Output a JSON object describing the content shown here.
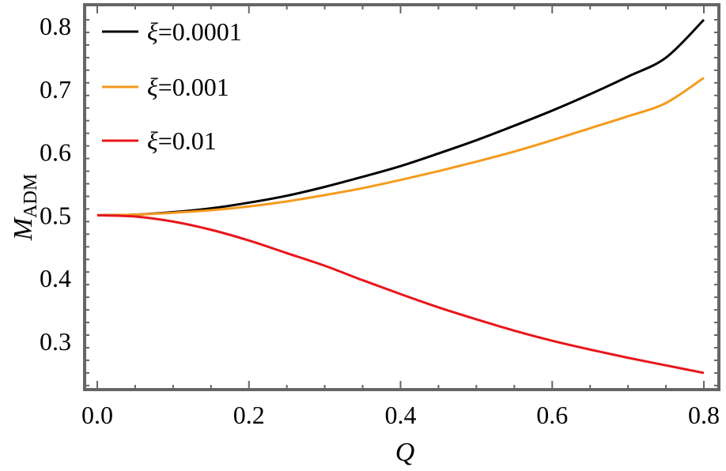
{
  "chart_data": {
    "type": "line",
    "xlabel": "Q",
    "ylabel_main": "M",
    "ylabel_sub": "ADM",
    "xlim": [
      0.0,
      0.8
    ],
    "ylim": [
      0.225,
      0.825
    ],
    "xticks": [
      0.0,
      0.2,
      0.4,
      0.6,
      0.8
    ],
    "xtick_labels": [
      "0.0",
      "0.2",
      "0.4",
      "0.6",
      "0.8"
    ],
    "yticks": [
      0.3,
      0.4,
      0.5,
      0.6,
      0.7,
      0.8
    ],
    "ytick_labels": [
      "0.3",
      "0.4",
      "0.5",
      "0.6",
      "0.7",
      "0.8"
    ],
    "legend_position": "top-left",
    "grid": false,
    "x": [
      0.0,
      0.05,
      0.1,
      0.15,
      0.2,
      0.25,
      0.3,
      0.35,
      0.4,
      0.45,
      0.5,
      0.55,
      0.6,
      0.65,
      0.7,
      0.75,
      0.8
    ],
    "series": [
      {
        "name": "ξ=0.0001",
        "symbol": "ξ",
        "value_text": "=0.0001",
        "color": "#000000",
        "values": [
          0.5,
          0.501,
          0.505,
          0.511,
          0.52,
          0.531,
          0.545,
          0.561,
          0.578,
          0.598,
          0.619,
          0.642,
          0.666,
          0.692,
          0.72,
          0.75,
          0.81
        ]
      },
      {
        "name": "ξ=0.001",
        "symbol": "ξ",
        "value_text": "=0.001",
        "color": "#f59a1c",
        "values": [
          0.5,
          0.501,
          0.504,
          0.508,
          0.514,
          0.522,
          0.532,
          0.543,
          0.556,
          0.57,
          0.585,
          0.601,
          0.619,
          0.638,
          0.657,
          0.678,
          0.718
        ]
      },
      {
        "name": "ξ=0.01",
        "symbol": "ξ",
        "value_text": "=0.01",
        "color": "#e8161b",
        "values": [
          0.5,
          0.498,
          0.49,
          0.477,
          0.46,
          0.44,
          0.42,
          0.397,
          0.375,
          0.354,
          0.335,
          0.317,
          0.301,
          0.287,
          0.274,
          0.262,
          0.25
        ]
      }
    ]
  }
}
